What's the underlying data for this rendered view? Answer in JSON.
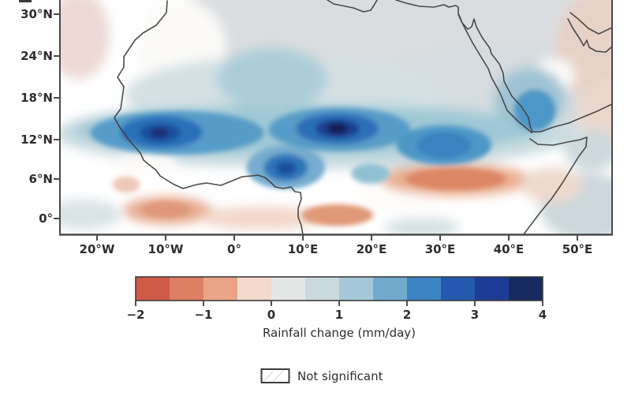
{
  "figure": {
    "description": "Filled-contour map of projected rainfall change over Africa and the Sahel with significance legend"
  },
  "chart_data": {
    "type": "heatmap",
    "title": "",
    "xlabel": "",
    "ylabel": "",
    "x_ticks": [
      "20°W",
      "10°W",
      "0°",
      "10°E",
      "20°E",
      "30°E",
      "40°E",
      "50°E"
    ],
    "y_ticks": [
      "30°N",
      "24°N",
      "18°N",
      "12°N",
      "6°N",
      "0°"
    ],
    "lon_range": [
      -25.5,
      55
    ],
    "lat_range": [
      -2.3,
      32.1
    ],
    "grid": false,
    "colorbar": {
      "label": "Rainfall change (mm/day)",
      "ticks": [
        "−2",
        "−1",
        "0",
        "1",
        "2",
        "3",
        "4"
      ],
      "tick_values": [
        -2,
        -1,
        0,
        1,
        2,
        3,
        4
      ],
      "range": [
        -2,
        4
      ],
      "segments": [
        "#cf5a45",
        "#dc7f62",
        "#e9a488",
        "#f4d9cd",
        "#e4e6e6",
        "#c9d9de",
        "#a5c8d8",
        "#72abce",
        "#3b83c2",
        "#2459b0",
        "#1e3c96",
        "#172a60"
      ]
    },
    "legend": {
      "not_significant": "Not significant"
    },
    "regions": [
      {
        "name": "sahara-gray",
        "lon": 23.0,
        "lat": 27.5,
        "rlon": 34.0,
        "rlat": 10.0,
        "value": 0.25,
        "color": "#dadde0",
        "soft": true
      },
      {
        "name": "sahara-gray-east",
        "lon": 37.0,
        "lat": 18.2,
        "rlon": 18.0,
        "rlat": 7.5,
        "value": 0.25,
        "color": "#d6dcdf",
        "soft": true
      },
      {
        "name": "atlantic-pink-northwest",
        "lon": -22.6,
        "lat": 26.9,
        "rlon": 4.5,
        "rlat": 6.5,
        "value": -0.4,
        "color": "#ecd9d5",
        "soft": true
      },
      {
        "name": "morocco-white",
        "lon": -7.7,
        "lat": 25.1,
        "rlon": 6.5,
        "rlat": 7.0,
        "value": 0.0,
        "color": "#fbfaf8",
        "soft": true
      },
      {
        "name": "arabia-pink-northeast",
        "lon": 54.2,
        "lat": 25.1,
        "rlon": 7.5,
        "rlat": 9.0,
        "value": -0.4,
        "color": "#e7d2c8",
        "soft": true
      },
      {
        "name": "arabia-pink-east",
        "lon": 54.9,
        "lat": 15.3,
        "rlon": 5.0,
        "rlat": 5.0,
        "value": -0.4,
        "color": "#ead8cd",
        "soft": true
      },
      {
        "name": "gulf-white-gap",
        "lon": 46.5,
        "lat": 21.0,
        "rlon": 3.0,
        "rlat": 2.5,
        "value": 0.0,
        "color": "#fcfbfa",
        "soft": true
      },
      {
        "name": "sahel-pale-blue-band",
        "lon": 11.8,
        "lat": 12.4,
        "rlon": 38.0,
        "rlat": 5.2,
        "value": 0.75,
        "color": "#cadce1",
        "soft": true
      },
      {
        "name": "sahara-pale-blue-upper",
        "lon": 7.2,
        "lat": 18.2,
        "rlon": 23.0,
        "rlat": 5.8,
        "value": 0.6,
        "color": "#d3e0e4",
        "soft": true
      },
      {
        "name": "sahel-teal-band",
        "lon": 10.7,
        "lat": 13.0,
        "rlon": 34.0,
        "rlat": 3.7,
        "value": 1.25,
        "color": "#9fc8d5",
        "soft": true
      },
      {
        "name": "hoggar-teal",
        "lon": 5.5,
        "lat": 20.5,
        "rlon": 8.0,
        "rlat": 4.6,
        "value": 1.0,
        "color": "#abcdd8",
        "soft": true
      },
      {
        "name": "arabia-teal",
        "lon": 43.0,
        "lat": 17.6,
        "rlon": 5.2,
        "rlat": 4.6,
        "value": 1.25,
        "color": "#9fc3d3",
        "soft": true
      },
      {
        "name": "gulf-guinea-white-gap",
        "lon": 0.3,
        "lat": 4.9,
        "rlon": 7.0,
        "rlat": 2.7,
        "value": 0.0,
        "color": "#ffffff",
        "soft": true
      },
      {
        "name": "sudan-white-gap",
        "lon": 23.3,
        "lat": 2.9,
        "rlon": 6.0,
        "rlat": 2.2,
        "value": 0.0,
        "color": "#fefdfb",
        "soft": true
      },
      {
        "name": "guinea-white-gap",
        "lon": -12.8,
        "lat": 8.1,
        "rlon": 4.5,
        "rlat": 1.8,
        "value": 0.0,
        "color": "#fdfbf9",
        "soft": true
      },
      {
        "name": "south-sudan-orange",
        "lon": 32.1,
        "lat": 5.7,
        "rlon": 11.0,
        "rlat": 2.4,
        "value": -0.9,
        "color": "#e9ad8e",
        "soft": true
      },
      {
        "name": "liberia-orange",
        "lon": -9.6,
        "lat": 1.2,
        "rlon": 6.5,
        "rlat": 2.0,
        "value": -0.9,
        "color": "#e6a98c",
        "soft": true
      },
      {
        "name": "equator-pink",
        "lon": 3.8,
        "lat": 0.1,
        "rlon": 9.0,
        "rlat": 1.7,
        "value": -0.5,
        "color": "#f2d7c9",
        "soft": true
      },
      {
        "name": "atlantic-pale-blue-sw",
        "lon": -22.0,
        "lat": 0.6,
        "rlon": 5.5,
        "rlat": 2.2,
        "value": 0.4,
        "color": "#d9e3e7",
        "soft": true
      },
      {
        "name": "congo-pale-teal",
        "lon": 27.3,
        "lat": -1.3,
        "rlon": 5.5,
        "rlat": 1.4,
        "value": 0.4,
        "color": "#d3e0e2",
        "soft": true
      },
      {
        "name": "somalia-pale-blue",
        "lon": 51.4,
        "lat": 1.7,
        "rlon": 7.0,
        "rlat": 5.0,
        "value": 0.5,
        "color": "#ccd8dd",
        "soft": true
      },
      {
        "name": "aden-pale-blue",
        "lon": 52.0,
        "lat": 10.0,
        "rlon": 4.0,
        "rlat": 3.0,
        "value": 0.5,
        "color": "#cdd9de",
        "soft": true
      },
      {
        "name": "horn-pink",
        "lon": 46.2,
        "lat": 4.9,
        "rlon": 4.5,
        "rlat": 2.6,
        "value": -0.4,
        "color": "#eed9cc",
        "soft": true
      },
      {
        "name": "sahel-west-blue",
        "lon": -8.3,
        "lat": 12.6,
        "rlon": 12.6,
        "rlat": 3.2,
        "value": 2.0,
        "color": "#569cc8",
        "soft": false
      },
      {
        "name": "sahel-center-blue",
        "lon": 15.3,
        "lat": 13.1,
        "rlon": 10.3,
        "rlat": 3.2,
        "value": 2.0,
        "color": "#569cc8",
        "soft": false
      },
      {
        "name": "sahel-east-blue",
        "lon": 30.5,
        "lat": 10.8,
        "rlon": 6.9,
        "rlat": 2.9,
        "value": 2.0,
        "color": "#4e97c6",
        "soft": false
      },
      {
        "name": "yemen-blue",
        "lon": 43.7,
        "lat": 15.9,
        "rlon": 3.0,
        "rlat": 3.0,
        "value": 2.0,
        "color": "#4e97c6",
        "soft": false
      },
      {
        "name": "cameroon-blue",
        "lon": 7.5,
        "lat": 7.5,
        "rlon": 5.7,
        "rlat": 3.2,
        "value": 1.75,
        "color": "#74accf",
        "soft": false
      },
      {
        "name": "car-teal-spot",
        "lon": 19.8,
        "lat": 6.6,
        "rlon": 2.8,
        "rlat": 1.5,
        "value": 1.25,
        "color": "#90c1d3",
        "soft": false
      },
      {
        "name": "sahel-west-blue-core",
        "lon": -10.6,
        "lat": 12.7,
        "rlon": 6.0,
        "rlat": 2.4,
        "value": 2.6,
        "color": "#2a6fb8",
        "soft": false
      },
      {
        "name": "sahel-center-blue-core",
        "lon": 15.0,
        "lat": 13.2,
        "rlon": 6.0,
        "rlat": 2.3,
        "value": 2.6,
        "color": "#2a6fb8",
        "soft": false
      },
      {
        "name": "sahel-east-blue-core",
        "lon": 30.5,
        "lat": 10.8,
        "rlon": 4.0,
        "rlat": 1.9,
        "value": 2.3,
        "color": "#3a82c0",
        "soft": false
      },
      {
        "name": "cameroon-blue-core",
        "lon": 7.5,
        "lat": 7.5,
        "rlon": 3.2,
        "rlat": 2.0,
        "value": 2.5,
        "color": "#2f74ba",
        "soft": false
      },
      {
        "name": "sahel-west-dark",
        "lon": -10.8,
        "lat": 12.6,
        "rlon": 3.0,
        "rlat": 1.4,
        "value": 3.2,
        "color": "#1d4f9e",
        "soft": false
      },
      {
        "name": "sahel-center-dark",
        "lon": 15.0,
        "lat": 13.2,
        "rlon": 3.2,
        "rlat": 1.4,
        "value": 3.4,
        "color": "#1c3f8f",
        "soft": false
      },
      {
        "name": "cameroon-blue-dark",
        "lon": 7.5,
        "lat": 7.4,
        "rlon": 1.5,
        "rlat": 1.0,
        "value": 3.0,
        "color": "#1d4f9e",
        "soft": false
      },
      {
        "name": "sahel-west-darkest",
        "lon": -10.9,
        "lat": 12.6,
        "rlon": 1.3,
        "rlat": 0.7,
        "value": 3.8,
        "color": "#1a2f6e",
        "soft": false
      },
      {
        "name": "sahel-center-darkest",
        "lon": 15.0,
        "lat": 13.2,
        "rlon": 1.5,
        "rlat": 0.8,
        "value": 4.0,
        "color": "#151f52",
        "soft": false
      },
      {
        "name": "south-sudan-orange-core",
        "lon": 32.2,
        "lat": 5.8,
        "rlon": 7.3,
        "rlat": 1.6,
        "value": -1.3,
        "color": "#dc8663",
        "soft": false
      },
      {
        "name": "liberia-orange-core",
        "lon": -10.0,
        "lat": 1.3,
        "rlon": 3.5,
        "rlat": 1.2,
        "value": -1.2,
        "color": "#df987a",
        "soft": false
      },
      {
        "name": "gabon-orange",
        "lon": 15.0,
        "lat": 0.5,
        "rlon": 5.2,
        "rlat": 1.6,
        "value": -1.1,
        "color": "#e09a78",
        "soft": false
      },
      {
        "name": "senegal-pink-spot",
        "lon": -15.7,
        "lat": 5.0,
        "rlon": 2.0,
        "rlat": 1.2,
        "value": -0.5,
        "color": "#efc7b6",
        "soft": false
      }
    ]
  }
}
